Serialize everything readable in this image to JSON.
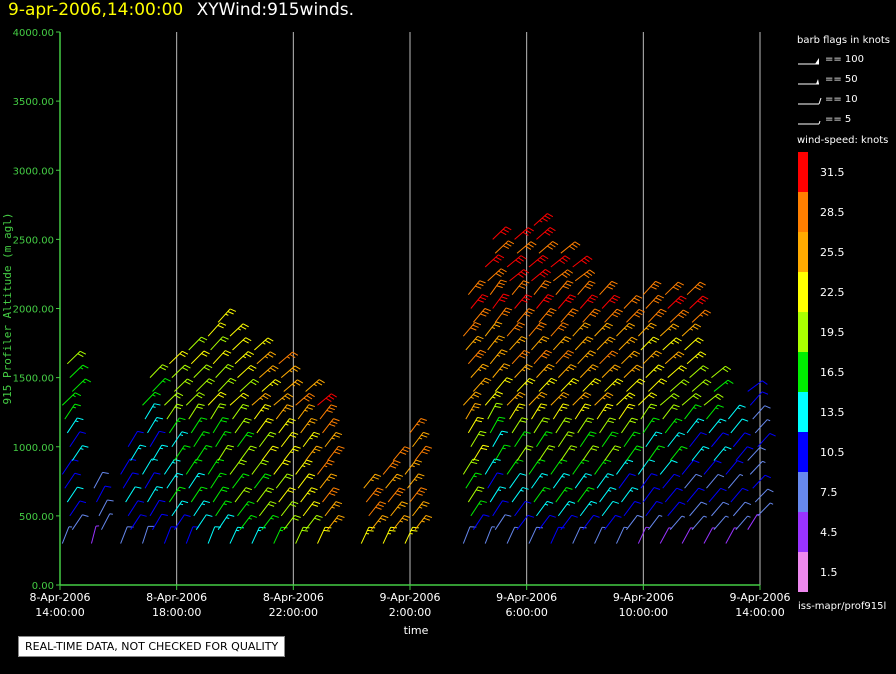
{
  "header": {
    "datetime": "9-apr-2006,14:00:00",
    "title": "XYWind:915winds."
  },
  "chart_data": {
    "type": "scatter",
    "subtype": "wind-barbs",
    "title": "XYWind:915winds.",
    "timestamp": "9-apr-2006,14:00:00",
    "xlabel": "time",
    "ylabel": "915 Profiler Altitude (m agl)",
    "ylim": [
      0,
      4000
    ],
    "yticks": [
      "0.00",
      "500.00",
      "1000.00",
      "1500.00",
      "2000.00",
      "2500.00",
      "3000.00",
      "3500.00",
      "4000.00"
    ],
    "xlim": [
      "2006-04-08T14:00:00",
      "2006-04-09T14:00:00"
    ],
    "xticks": [
      {
        "date": "8-Apr-2006",
        "time": "14:00:00"
      },
      {
        "date": "8-Apr-2006",
        "time": "18:00:00"
      },
      {
        "date": "8-Apr-2006",
        "time": "22:00:00"
      },
      {
        "date": "9-Apr-2006",
        "time": "2:00:00"
      },
      {
        "date": "9-Apr-2006",
        "time": "6:00:00"
      },
      {
        "date": "9-Apr-2006",
        "time": "10:00:00"
      },
      {
        "date": "9-Apr-2006",
        "time": "14:00:00"
      }
    ],
    "grid": "vertical",
    "profiles": [
      {
        "x": "2006-04-08T14:15:00",
        "top": 1600,
        "base": 300,
        "speeds": [
          8,
          10,
          12,
          14,
          16,
          18
        ],
        "dir": [
          200,
          210,
          220,
          230,
          240,
          250
        ]
      },
      {
        "x": "2006-04-08T15:15:00",
        "top": 700,
        "base": 300,
        "speeds": [
          7,
          8,
          9
        ],
        "dir": [
          180,
          190,
          200
        ]
      },
      {
        "x": "2006-04-08T16:15:00",
        "top": 1000,
        "base": 300,
        "speeds": [
          10,
          10,
          11,
          12
        ],
        "dir": [
          200,
          205,
          210,
          220
        ]
      },
      {
        "x": "2006-04-08T17:00:00",
        "top": 1500,
        "base": 300,
        "speeds": [
          10,
          11,
          12,
          13,
          14,
          18
        ],
        "dir": [
          190,
          200,
          210,
          220,
          230,
          240
        ]
      },
      {
        "x": "2006-04-08T17:45:00",
        "top": 1600,
        "base": 300,
        "speeds": [
          11,
          13,
          15,
          17,
          19,
          21
        ],
        "dir": [
          200,
          210,
          220,
          230,
          240,
          250
        ]
      },
      {
        "x": "2006-04-08T18:30:00",
        "top": 1700,
        "base": 300,
        "speeds": [
          12,
          14,
          16,
          18,
          20,
          22
        ],
        "dir": [
          200,
          210,
          220,
          230,
          240,
          250
        ]
      },
      {
        "x": "2006-04-08T19:15:00",
        "top": 1900,
        "base": 300,
        "speeds": [
          14,
          16,
          18,
          19,
          21,
          23
        ],
        "dir": [
          200,
          210,
          220,
          230,
          240,
          250
        ]
      },
      {
        "x": "2006-04-08T20:00:00",
        "top": 1800,
        "base": 300,
        "speeds": [
          15,
          17,
          19,
          20,
          22,
          24
        ],
        "dir": [
          210,
          220,
          230,
          240,
          250,
          260
        ]
      },
      {
        "x": "2006-04-08T20:45:00",
        "top": 1700,
        "base": 300,
        "speeds": [
          16,
          18,
          20,
          22,
          24,
          25
        ],
        "dir": [
          210,
          220,
          230,
          240,
          250,
          260
        ]
      },
      {
        "x": "2006-04-08T21:30:00",
        "top": 1600,
        "base": 300,
        "speeds": [
          18,
          20,
          22,
          24,
          25,
          26
        ],
        "dir": [
          210,
          220,
          230,
          240,
          250,
          260
        ]
      },
      {
        "x": "2006-04-08T22:15:00",
        "top": 1400,
        "base": 300,
        "speeds": [
          20,
          22,
          24,
          26,
          27
        ],
        "dir": [
          210,
          220,
          230,
          240,
          250
        ]
      },
      {
        "x": "2006-04-08T23:00:00",
        "top": 1300,
        "base": 300,
        "speeds": [
          24,
          26,
          27,
          28,
          29
        ],
        "dir": [
          210,
          220,
          230,
          240,
          250
        ]
      },
      {
        "x": "2006-04-09T00:30:00",
        "top": 700,
        "base": 300,
        "speeds": [
          25,
          27,
          28
        ],
        "dir": [
          210,
          220,
          230
        ]
      },
      {
        "x": "2006-04-09T01:15:00",
        "top": 900,
        "base": 300,
        "speeds": [
          25,
          26,
          27,
          28
        ],
        "dir": [
          210,
          220,
          230,
          240
        ]
      },
      {
        "x": "2006-04-09T02:00:00",
        "top": 1100,
        "base": 300,
        "speeds": [
          25,
          26,
          27,
          28
        ],
        "dir": [
          210,
          220,
          230,
          240
        ]
      },
      {
        "x": "2006-04-09T04:00:00",
        "top": 2100,
        "base": 300,
        "speeds": [
          10,
          18,
          22,
          26,
          28,
          30
        ],
        "dir": [
          200,
          210,
          220,
          230,
          240,
          250
        ]
      },
      {
        "x": "2006-04-09T04:45:00",
        "top": 2500,
        "base": 300,
        "speeds": [
          8,
          12,
          20,
          26,
          29,
          31
        ],
        "dir": [
          200,
          210,
          220,
          230,
          240,
          250
        ]
      },
      {
        "x": "2006-04-09T05:30:00",
        "top": 2500,
        "base": 300,
        "speeds": [
          9,
          14,
          22,
          27,
          30,
          32
        ],
        "dir": [
          210,
          220,
          230,
          240,
          250,
          260
        ]
      },
      {
        "x": "2006-04-09T06:15:00",
        "top": 2600,
        "base": 300,
        "speeds": [
          10,
          15,
          23,
          28,
          30,
          32
        ],
        "dir": [
          210,
          220,
          230,
          240,
          250,
          260
        ]
      },
      {
        "x": "2006-04-09T07:00:00",
        "top": 2400,
        "base": 300,
        "speeds": [
          11,
          16,
          22,
          27,
          29,
          30
        ],
        "dir": [
          210,
          220,
          230,
          240,
          250,
          260
        ]
      },
      {
        "x": "2006-04-09T07:45:00",
        "top": 2300,
        "base": 300,
        "speeds": [
          10,
          15,
          21,
          25,
          28,
          30
        ],
        "dir": [
          210,
          220,
          230,
          240,
          250,
          260
        ]
      },
      {
        "x": "2006-04-09T08:30:00",
        "top": 2100,
        "base": 300,
        "speeds": [
          9,
          14,
          20,
          24,
          27,
          29
        ],
        "dir": [
          210,
          220,
          230,
          240,
          250,
          260
        ]
      },
      {
        "x": "2006-04-09T09:15:00",
        "top": 2000,
        "base": 300,
        "speeds": [
          8,
          12,
          18,
          22,
          26,
          28
        ],
        "dir": [
          210,
          220,
          230,
          240,
          250,
          260
        ]
      },
      {
        "x": "2006-04-09T10:00:00",
        "top": 2100,
        "base": 300,
        "speeds": [
          7,
          10,
          16,
          22,
          26,
          29
        ],
        "dir": [
          210,
          220,
          230,
          240,
          250,
          260
        ]
      },
      {
        "x": "2006-04-09T10:45:00",
        "top": 2100,
        "base": 300,
        "speeds": [
          7,
          10,
          16,
          20,
          25,
          30
        ],
        "dir": [
          220,
          230,
          240,
          250,
          260,
          270
        ]
      },
      {
        "x": "2006-04-09T11:30:00",
        "top": 2100,
        "base": 300,
        "speeds": [
          6,
          9,
          14,
          19,
          24,
          30
        ],
        "dir": [
          220,
          230,
          240,
          250,
          260,
          270
        ]
      },
      {
        "x": "2006-04-09T12:15:00",
        "top": 1500,
        "base": 300,
        "speeds": [
          6,
          9,
          12,
          16,
          20
        ],
        "dir": [
          220,
          230,
          240,
          250,
          260
        ]
      },
      {
        "x": "2006-04-09T13:00:00",
        "top": 1200,
        "base": 300,
        "speeds": [
          6,
          8,
          10,
          14
        ],
        "dir": [
          220,
          230,
          240,
          250
        ]
      },
      {
        "x": "2006-04-09T13:45:00",
        "top": 1400,
        "base": 400,
        "speeds": [
          7,
          8,
          9,
          10
        ],
        "dir": [
          230,
          240,
          250,
          260
        ]
      }
    ]
  },
  "legend": {
    "flags_title": "barb flags in knots",
    "flags": [
      {
        "label": "== 100",
        "kind": "100"
      },
      {
        "label": "== 50",
        "kind": "50"
      },
      {
        "label": "== 10",
        "kind": "10"
      },
      {
        "label": "== 5",
        "kind": "5"
      }
    ],
    "colorbar_title": "wind-speed: knots",
    "colorbar": [
      {
        "label": "31.5",
        "color": "#ff0000"
      },
      {
        "label": "28.5",
        "color": "#ff7f00"
      },
      {
        "label": "25.5",
        "color": "#ffaa00"
      },
      {
        "label": "22.5",
        "color": "#ffff00"
      },
      {
        "label": "19.5",
        "color": "#aaff00"
      },
      {
        "label": "16.5",
        "color": "#00ee00"
      },
      {
        "label": "13.5",
        "color": "#00ffff"
      },
      {
        "label": "10.5",
        "color": "#0000ff"
      },
      {
        "label": "7.5",
        "color": "#6688ee"
      },
      {
        "label": "4.5",
        "color": "#9933ff"
      },
      {
        "label": "1.5",
        "color": "#ee88ee"
      }
    ],
    "source": "iss-mapr/prof915l"
  },
  "footer": {
    "quality_note": "REAL-TIME DATA, NOT CHECKED FOR QUALITY"
  },
  "colors": {
    "axis": "#44cc44",
    "grid": "#bbbbbb",
    "datetime": "#ffff00"
  }
}
